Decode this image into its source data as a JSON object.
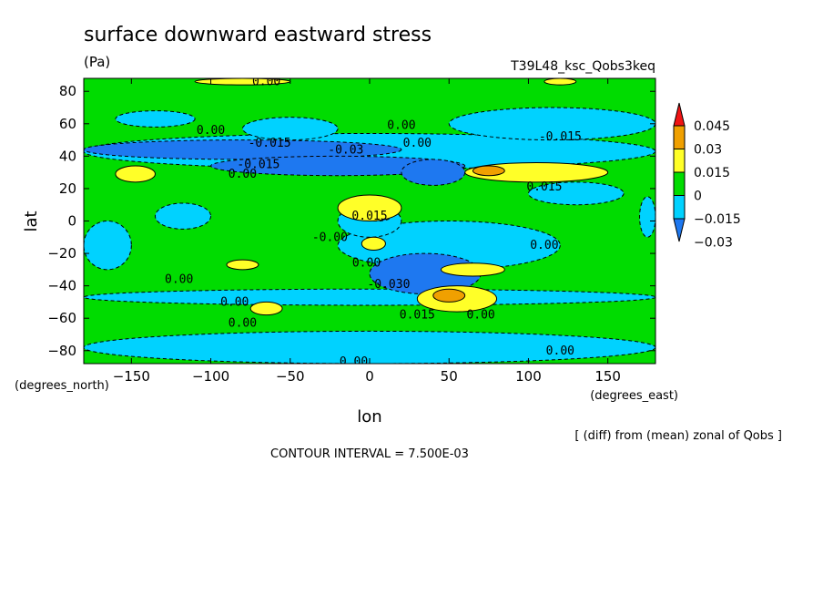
{
  "chart_data": {
    "type": "heatmap",
    "title": "surface downward eastward stress",
    "units": "(Pa)",
    "run_label": "T39L48_ksc_Qobs3keq",
    "xlabel": "lon",
    "ylabel": "lat",
    "x_units": "(degrees_east)",
    "y_units": "(degrees_north)",
    "xlim": [
      -180,
      180
    ],
    "ylim": [
      -88,
      88
    ],
    "x_ticks": [
      -150,
      -100,
      -50,
      0,
      50,
      100,
      150
    ],
    "x_tick_labels": [
      "−150",
      "−100",
      "−50",
      "0",
      "50",
      "100",
      "150"
    ],
    "y_ticks": [
      -80,
      -60,
      -40,
      -20,
      0,
      20,
      40,
      60,
      80
    ],
    "y_tick_labels": [
      "−80",
      "−60",
      "−40",
      "−20",
      "0",
      "20",
      "40",
      "60",
      "80"
    ],
    "contour_interval_text": "CONTOUR INTERVAL = 7.500E-03",
    "note": "[ (diff) from (mean) zonal of Qobs ]",
    "colorbar": {
      "levels": [
        -0.03,
        -0.015,
        0,
        0.015,
        0.03,
        0.045
      ],
      "labels": [
        "−0.03",
        "−0.015",
        "0",
        "0.015",
        "0.03",
        "0.045"
      ],
      "colors": [
        "#1e78f0",
        "#00d2ff",
        "#00dc00",
        "#ffff28",
        "#f0a000",
        "#f01414"
      ]
    },
    "fill_classes": {
      "0": "#1e78f0",
      "1": "#00d2ff",
      "2": "#00dc00",
      "3": "#ffff28",
      "4": "#f0a000",
      "5": "#f01414"
    },
    "regions": [
      {
        "level": 1,
        "lon": -180,
        "lat": -52,
        "w": 360,
        "h": 10
      },
      {
        "level": 1,
        "lon": -180,
        "lat": -88,
        "w": 360,
        "h": 20
      },
      {
        "level": 1,
        "lon": -180,
        "lat": 32,
        "w": 360,
        "h": 22
      },
      {
        "level": 0,
        "lon": -180,
        "lat": 38,
        "w": 200,
        "h": 12
      },
      {
        "level": 0,
        "lon": -100,
        "lat": 28,
        "w": 160,
        "h": 12
      },
      {
        "level": 0,
        "lon": 20,
        "lat": 22,
        "w": 40,
        "h": 16
      },
      {
        "level": 1,
        "lon": -80,
        "lat": 50,
        "w": 60,
        "h": 14
      },
      {
        "level": 1,
        "lon": -160,
        "lat": 58,
        "w": 50,
        "h": 10
      },
      {
        "level": 1,
        "lon": 50,
        "lat": 50,
        "w": 130,
        "h": 20
      },
      {
        "level": 1,
        "lon": -20,
        "lat": -30,
        "w": 140,
        "h": 30
      },
      {
        "level": 0,
        "lon": 0,
        "lat": -45,
        "w": 70,
        "h": 25
      },
      {
        "level": 1,
        "lon": -20,
        "lat": -10,
        "w": 40,
        "h": 20
      },
      {
        "level": 0,
        "lon": -5,
        "lat": 0,
        "w": 20,
        "h": 8
      },
      {
        "level": 1,
        "lon": -135,
        "lat": -5,
        "w": 35,
        "h": 16
      },
      {
        "level": 1,
        "lon": -180,
        "lat": -30,
        "w": 30,
        "h": 30
      },
      {
        "level": 1,
        "lon": 100,
        "lat": 10,
        "w": 60,
        "h": 14
      },
      {
        "level": 1,
        "lon": 170,
        "lat": -10,
        "w": 10,
        "h": 25
      },
      {
        "level": 3,
        "lon": -160,
        "lat": 24,
        "w": 25,
        "h": 10
      },
      {
        "level": 3,
        "lon": 60,
        "lat": 24,
        "w": 90,
        "h": 12
      },
      {
        "level": 4,
        "lon": 65,
        "lat": 28,
        "w": 20,
        "h": 6
      },
      {
        "level": 3,
        "lon": -20,
        "lat": 0,
        "w": 40,
        "h": 16
      },
      {
        "level": 3,
        "lon": -5,
        "lat": -18,
        "w": 15,
        "h": 8
      },
      {
        "level": 3,
        "lon": 30,
        "lat": -56,
        "w": 50,
        "h": 16
      },
      {
        "level": 4,
        "lon": 40,
        "lat": -50,
        "w": 20,
        "h": 8
      },
      {
        "level": 3,
        "lon": -75,
        "lat": -58,
        "w": 20,
        "h": 8
      },
      {
        "level": 3,
        "lon": -90,
        "lat": -30,
        "w": 20,
        "h": 6
      },
      {
        "level": 3,
        "lon": 45,
        "lat": -34,
        "w": 40,
        "h": 8
      },
      {
        "level": 3,
        "lon": -110,
        "lat": 84,
        "w": 60,
        "h": 4
      },
      {
        "level": 3,
        "lon": 110,
        "lat": 84,
        "w": 20,
        "h": 4
      }
    ],
    "contour_labels": [
      {
        "text": "0.00",
        "lon": -65,
        "lat": 86
      },
      {
        "text": "0.00",
        "lon": 20,
        "lat": 59
      },
      {
        "text": "0.00",
        "lon": -100,
        "lat": 56
      },
      {
        "text": "-0.015",
        "lon": -63,
        "lat": 48
      },
      {
        "text": "-0.03",
        "lon": -15,
        "lat": 44
      },
      {
        "text": "0.00",
        "lon": 30,
        "lat": 48
      },
      {
        "text": "-0.015",
        "lon": 120,
        "lat": 52
      },
      {
        "text": "0.00",
        "lon": -80,
        "lat": 29
      },
      {
        "text": "-0.015",
        "lon": -70,
        "lat": 35
      },
      {
        "text": "0.015",
        "lon": 110,
        "lat": 21
      },
      {
        "text": "0.015",
        "lon": 0,
        "lat": 3
      },
      {
        "text": "-0.00",
        "lon": -25,
        "lat": -10
      },
      {
        "text": "0.00",
        "lon": 110,
        "lat": -15
      },
      {
        "text": "0.00",
        "lon": -2,
        "lat": -26
      },
      {
        "text": "0.00",
        "lon": -120,
        "lat": -36
      },
      {
        "text": "-0.030",
        "lon": 12,
        "lat": -39
      },
      {
        "text": "0.00",
        "lon": -85,
        "lat": -50
      },
      {
        "text": "0.015",
        "lon": 30,
        "lat": -58
      },
      {
        "text": "0.00",
        "lon": 70,
        "lat": -58
      },
      {
        "text": "0.00",
        "lon": -80,
        "lat": -63
      },
      {
        "text": "0.00",
        "lon": 120,
        "lat": -80
      },
      {
        "text": "0.00",
        "lon": -10,
        "lat": -87
      }
    ]
  }
}
